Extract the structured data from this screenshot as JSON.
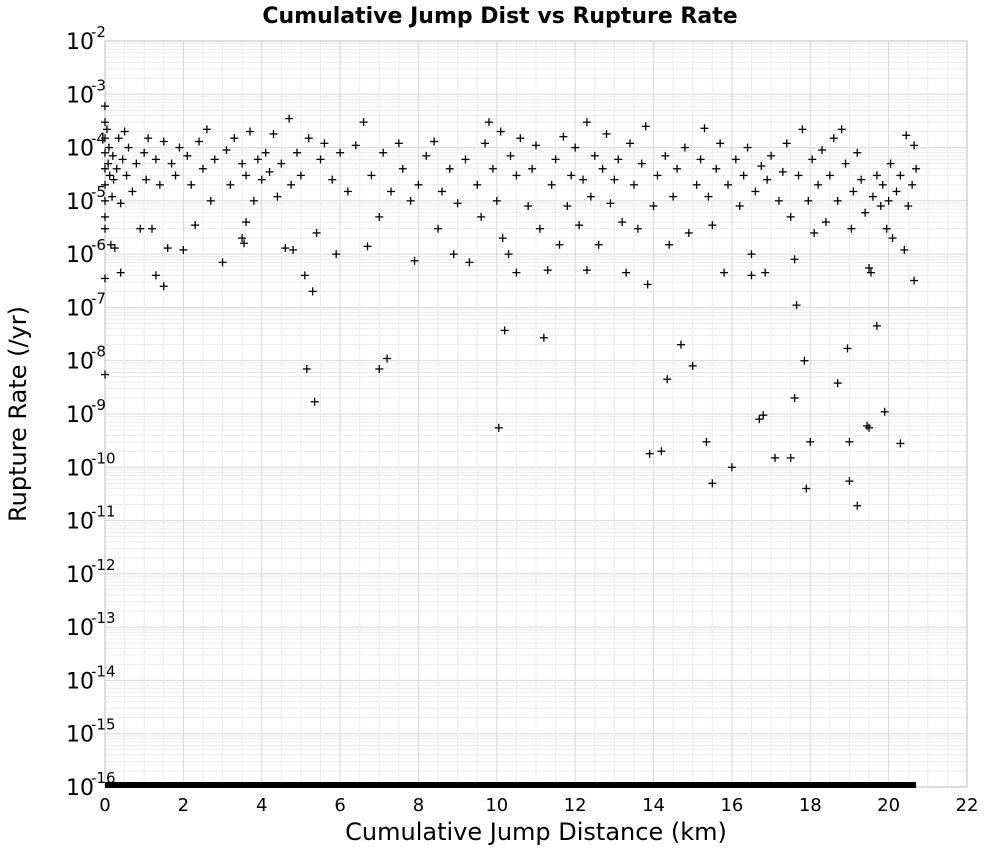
{
  "chart_data": {
    "type": "scatter",
    "title": "Cumulative Jump Dist vs Rupture Rate",
    "xlabel": "Cumulative Jump Distance (km)",
    "ylabel": "Rupture Rate (/yr)",
    "xlim": [
      0,
      22
    ],
    "ylim": [
      1e-16,
      0.01
    ],
    "yscale": "log",
    "grid": true,
    "marker": "plus",
    "color": "#000000",
    "x_ticks": [
      "0",
      "2",
      "4",
      "6",
      "8",
      "10",
      "12",
      "14",
      "16",
      "18",
      "20",
      "22"
    ],
    "y_ticks": [
      {
        "base": "10",
        "exp": "-2"
      },
      {
        "base": "10",
        "exp": "-3"
      },
      {
        "base": "10",
        "exp": "-4"
      },
      {
        "base": "10",
        "exp": "-5"
      },
      {
        "base": "10",
        "exp": "-6"
      },
      {
        "base": "10",
        "exp": "-7"
      },
      {
        "base": "10",
        "exp": "-8"
      },
      {
        "base": "10",
        "exp": "-9"
      },
      {
        "base": "10",
        "exp": "-10"
      },
      {
        "base": "10",
        "exp": "-11"
      },
      {
        "base": "10",
        "exp": "-12"
      },
      {
        "base": "10",
        "exp": "-13"
      },
      {
        "base": "10",
        "exp": "-14"
      },
      {
        "base": "10",
        "exp": "-15"
      },
      {
        "base": "10",
        "exp": "-16"
      }
    ],
    "floor_band": {
      "x_range": [
        0,
        20.7
      ],
      "y": 1e-16
    },
    "points": [
      [
        0.0,
        0.0006
      ],
      [
        0.0,
        0.0003
      ],
      [
        0.0,
        0.00015
      ],
      [
        0.0,
        8e-05
      ],
      [
        0.0,
        4e-05
      ],
      [
        0.0,
        2e-05
      ],
      [
        0.0,
        1e-05
      ],
      [
        0.0,
        5e-06
      ],
      [
        0.0,
        3e-06
      ],
      [
        0.0,
        3.5e-07
      ],
      [
        0.0,
        5.5e-09
      ],
      [
        0.05,
        0.00022
      ],
      [
        0.08,
        5e-05
      ],
      [
        0.1,
        0.0001
      ],
      [
        0.12,
        3e-05
      ],
      [
        0.15,
        1.5e-06
      ],
      [
        0.18,
        1.2e-05
      ],
      [
        0.2,
        7e-05
      ],
      [
        0.22,
        2.5e-05
      ],
      [
        0.25,
        1.3e-06
      ],
      [
        0.3,
        4e-05
      ],
      [
        0.35,
        0.00015
      ],
      [
        0.4,
        9e-06
      ],
      [
        0.4,
        4.5e-07
      ],
      [
        0.45,
        6e-05
      ],
      [
        0.5,
        0.0002
      ],
      [
        0.55,
        3e-05
      ],
      [
        0.6,
        0.0001
      ],
      [
        0.7,
        1.5e-05
      ],
      [
        0.8,
        5e-05
      ],
      [
        0.9,
        3e-06
      ],
      [
        1.0,
        8e-05
      ],
      [
        1.05,
        2.5e-05
      ],
      [
        1.1,
        0.00015
      ],
      [
        1.2,
        3e-06
      ],
      [
        1.3,
        6e-05
      ],
      [
        1.3,
        4e-07
      ],
      [
        1.4,
        2e-05
      ],
      [
        1.5,
        2.5e-07
      ],
      [
        1.5,
        0.00013
      ],
      [
        1.6,
        1.3e-06
      ],
      [
        1.7,
        5e-05
      ],
      [
        1.8,
        3e-05
      ],
      [
        1.9,
        0.0001
      ],
      [
        2.0,
        1.2e-06
      ],
      [
        2.1,
        7e-05
      ],
      [
        2.2,
        2e-05
      ],
      [
        2.3,
        3.5e-06
      ],
      [
        2.4,
        0.00013
      ],
      [
        2.5,
        4e-05
      ],
      [
        2.6,
        0.00022
      ],
      [
        2.7,
        1e-05
      ],
      [
        2.8,
        6e-05
      ],
      [
        3.0,
        7e-07
      ],
      [
        3.1,
        9e-05
      ],
      [
        3.2,
        2e-05
      ],
      [
        3.3,
        0.00015
      ],
      [
        3.5,
        5e-05
      ],
      [
        3.5,
        2e-06
      ],
      [
        3.55,
        1.6e-06
      ],
      [
        3.6,
        3e-05
      ],
      [
        3.6,
        4e-06
      ],
      [
        3.7,
        0.0002
      ],
      [
        3.8,
        1e-05
      ],
      [
        3.9,
        6e-05
      ],
      [
        4.0,
        2.5e-05
      ],
      [
        4.1,
        8e-05
      ],
      [
        4.2,
        3.5e-05
      ],
      [
        4.3,
        0.00018
      ],
      [
        4.4,
        1.2e-05
      ],
      [
        4.5,
        5e-05
      ],
      [
        4.6,
        1.3e-06
      ],
      [
        4.7,
        0.00035
      ],
      [
        4.75,
        2e-05
      ],
      [
        4.8,
        1.2e-06
      ],
      [
        4.9,
        8e-05
      ],
      [
        5.0,
        3e-05
      ],
      [
        5.1,
        4e-07
      ],
      [
        5.15,
        7e-09
      ],
      [
        5.2,
        0.00015
      ],
      [
        5.3,
        2e-07
      ],
      [
        5.35,
        1.7e-09
      ],
      [
        5.4,
        2.5e-06
      ],
      [
        5.5,
        6e-05
      ],
      [
        5.6,
        0.00012
      ],
      [
        5.8,
        2.5e-05
      ],
      [
        5.9,
        1e-06
      ],
      [
        6.0,
        8e-05
      ],
      [
        6.2,
        1.5e-05
      ],
      [
        6.4,
        0.00011
      ],
      [
        6.6,
        0.0003
      ],
      [
        6.7,
        1.4e-06
      ],
      [
        6.8,
        3e-05
      ],
      [
        7.0,
        5e-06
      ],
      [
        7.0,
        7e-09
      ],
      [
        7.1,
        8e-05
      ],
      [
        7.2,
        1.1e-08
      ],
      [
        7.3,
        1.5e-05
      ],
      [
        7.5,
        0.00012
      ],
      [
        7.6,
        4e-05
      ],
      [
        7.8,
        1e-05
      ],
      [
        7.9,
        7.5e-07
      ],
      [
        8.0,
        2e-05
      ],
      [
        8.2,
        7e-05
      ],
      [
        8.4,
        0.00013
      ],
      [
        8.5,
        3e-06
      ],
      [
        8.6,
        1.5e-05
      ],
      [
        8.8,
        4e-05
      ],
      [
        8.9,
        1e-06
      ],
      [
        9.0,
        9e-06
      ],
      [
        9.2,
        6e-05
      ],
      [
        9.3,
        7e-07
      ],
      [
        9.5,
        2e-05
      ],
      [
        9.6,
        5e-06
      ],
      [
        9.7,
        0.00012
      ],
      [
        9.8,
        0.0003
      ],
      [
        9.9,
        4e-05
      ],
      [
        10.0,
        1e-05
      ],
      [
        10.05,
        5.5e-10
      ],
      [
        10.1,
        0.0002
      ],
      [
        10.15,
        2e-06
      ],
      [
        10.2,
        3.7e-08
      ],
      [
        10.3,
        1e-06
      ],
      [
        10.35,
        7e-05
      ],
      [
        10.5,
        3e-05
      ],
      [
        10.5,
        4.5e-07
      ],
      [
        10.6,
        0.00015
      ],
      [
        10.8,
        8e-06
      ],
      [
        10.9,
        4e-05
      ],
      [
        11.0,
        0.00011
      ],
      [
        11.1,
        3e-06
      ],
      [
        11.2,
        2.7e-08
      ],
      [
        11.3,
        5e-07
      ],
      [
        11.4,
        2e-05
      ],
      [
        11.5,
        6e-05
      ],
      [
        11.6,
        1.5e-06
      ],
      [
        11.7,
        0.00016
      ],
      [
        11.8,
        8e-06
      ],
      [
        11.9,
        3e-05
      ],
      [
        12.0,
        0.0001
      ],
      [
        12.1,
        3.5e-06
      ],
      [
        12.2,
        2.5e-05
      ],
      [
        12.3,
        0.0003
      ],
      [
        12.3,
        5e-07
      ],
      [
        12.4,
        1.2e-05
      ],
      [
        12.5,
        7e-05
      ],
      [
        12.6,
        1.5e-06
      ],
      [
        12.7,
        4e-05
      ],
      [
        12.8,
        0.00018
      ],
      [
        12.9,
        9e-06
      ],
      [
        13.0,
        2.5e-05
      ],
      [
        13.1,
        6e-05
      ],
      [
        13.2,
        4e-06
      ],
      [
        13.3,
        4.5e-07
      ],
      [
        13.4,
        0.00012
      ],
      [
        13.5,
        2e-05
      ],
      [
        13.6,
        3e-06
      ],
      [
        13.7,
        5e-05
      ],
      [
        13.8,
        0.00025
      ],
      [
        13.85,
        2.7e-07
      ],
      [
        13.9,
        1.8e-10
      ],
      [
        14.0,
        8e-06
      ],
      [
        14.1,
        3e-05
      ],
      [
        14.2,
        2e-10
      ],
      [
        14.3,
        7e-05
      ],
      [
        14.35,
        4.5e-09
      ],
      [
        14.4,
        1.5e-06
      ],
      [
        14.5,
        1.2e-05
      ],
      [
        14.6,
        4e-05
      ],
      [
        14.7,
        2e-08
      ],
      [
        14.8,
        0.0001
      ],
      [
        14.9,
        2.5e-06
      ],
      [
        15.0,
        8e-09
      ],
      [
        15.1,
        2e-05
      ],
      [
        15.2,
        6e-05
      ],
      [
        15.3,
        0.00023
      ],
      [
        15.35,
        3e-10
      ],
      [
        15.4,
        1.2e-05
      ],
      [
        15.5,
        5e-11
      ],
      [
        15.5,
        3.5e-06
      ],
      [
        15.6,
        4e-05
      ],
      [
        15.7,
        0.00012
      ],
      [
        15.8,
        4.5e-07
      ],
      [
        15.9,
        2e-05
      ],
      [
        16.0,
        1e-10
      ],
      [
        16.1,
        6e-05
      ],
      [
        16.2,
        8e-06
      ],
      [
        16.3,
        3e-05
      ],
      [
        16.4,
        0.0001
      ],
      [
        16.5,
        1e-06
      ],
      [
        16.5,
        4e-07
      ],
      [
        16.6,
        1.5e-05
      ],
      [
        16.7,
        8e-10
      ],
      [
        16.75,
        4.5e-05
      ],
      [
        16.8,
        9.5e-10
      ],
      [
        16.85,
        4.5e-07
      ],
      [
        16.9,
        2.5e-05
      ],
      [
        17.0,
        7e-05
      ],
      [
        17.1,
        1.5e-10
      ],
      [
        17.2,
        1e-05
      ],
      [
        17.3,
        3.5e-05
      ],
      [
        17.4,
        0.00012
      ],
      [
        17.5,
        1.5e-10
      ],
      [
        17.5,
        5e-06
      ],
      [
        17.6,
        2e-09
      ],
      [
        17.6,
        8e-07
      ],
      [
        17.65,
        1.1e-07
      ],
      [
        17.7,
        3e-05
      ],
      [
        17.8,
        0.00022
      ],
      [
        17.85,
        1e-08
      ],
      [
        17.9,
        4e-11
      ],
      [
        17.95,
        1e-05
      ],
      [
        18.0,
        3e-10
      ],
      [
        18.05,
        6e-05
      ],
      [
        18.1,
        2.5e-06
      ],
      [
        18.2,
        2e-05
      ],
      [
        18.3,
        9e-05
      ],
      [
        18.4,
        4e-06
      ],
      [
        18.5,
        3e-05
      ],
      [
        18.6,
        0.00015
      ],
      [
        18.7,
        3.8e-09
      ],
      [
        18.7,
        1e-05
      ],
      [
        18.8,
        0.00022
      ],
      [
        18.9,
        5e-05
      ],
      [
        18.95,
        1.7e-08
      ],
      [
        19.0,
        3e-10
      ],
      [
        19.0,
        5.5e-11
      ],
      [
        19.05,
        3e-06
      ],
      [
        19.1,
        1.5e-05
      ],
      [
        19.2,
        1.9e-11
      ],
      [
        19.2,
        8e-05
      ],
      [
        19.3,
        2.5e-05
      ],
      [
        19.4,
        6e-06
      ],
      [
        19.45,
        6e-10
      ],
      [
        19.5,
        5.5e-10
      ],
      [
        19.5,
        5.5e-07
      ],
      [
        19.55,
        4.5e-07
      ],
      [
        19.6,
        1.2e-05
      ],
      [
        19.7,
        4.5e-08
      ],
      [
        19.7,
        3e-05
      ],
      [
        19.8,
        8e-06
      ],
      [
        19.85,
        2e-05
      ],
      [
        19.9,
        1.1e-09
      ],
      [
        19.95,
        3e-06
      ],
      [
        20.0,
        1e-05
      ],
      [
        20.05,
        5e-05
      ],
      [
        20.1,
        2e-06
      ],
      [
        20.2,
        1.5e-05
      ],
      [
        20.3,
        2.8e-10
      ],
      [
        20.3,
        3e-05
      ],
      [
        20.4,
        1.2e-06
      ],
      [
        20.45,
        0.00017
      ],
      [
        20.5,
        8e-06
      ],
      [
        20.6,
        2e-05
      ],
      [
        20.65,
        0.00011
      ],
      [
        20.65,
        3.2e-07
      ],
      [
        20.7,
        4e-05
      ]
    ]
  }
}
